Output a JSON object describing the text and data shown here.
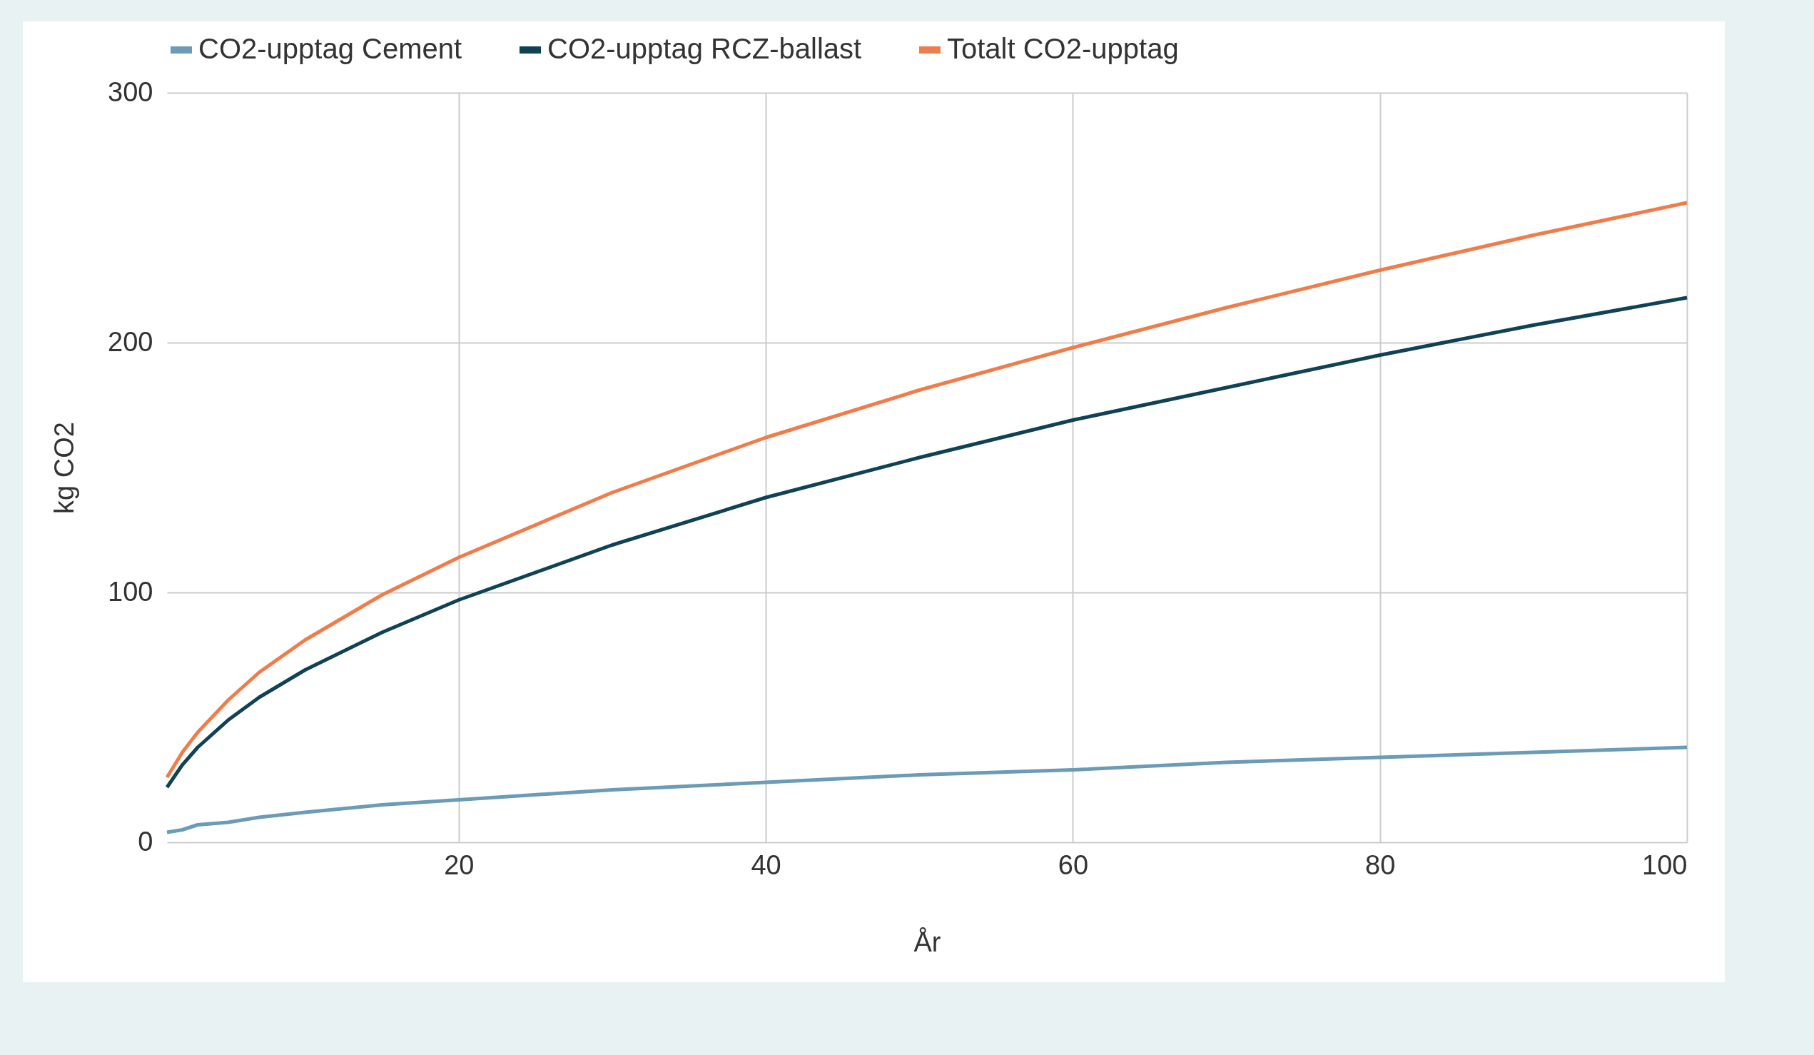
{
  "chart_data": {
    "type": "line",
    "xlabel": "År",
    "ylabel": "kg CO2",
    "x": [
      1,
      2,
      3,
      5,
      7,
      10,
      15,
      20,
      30,
      40,
      50,
      60,
      70,
      80,
      90,
      100
    ],
    "series": [
      {
        "name": "CO2-upptag Cement",
        "color": "#6b9bb6",
        "values": [
          4,
          5,
          7,
          8,
          10,
          12,
          15,
          17,
          21,
          24,
          27,
          29,
          32,
          34,
          36,
          38
        ]
      },
      {
        "name": "CO2-upptag RCZ-ballast",
        "color": "#0f4254",
        "values": [
          22,
          31,
          38,
          49,
          58,
          69,
          84,
          97,
          119,
          138,
          154,
          169,
          182,
          195,
          207,
          218
        ]
      },
      {
        "name": "Totalt CO2-upptag",
        "color": "#ef7d4b",
        "values": [
          26,
          36,
          44,
          57,
          68,
          81,
          99,
          114,
          140,
          162,
          181,
          198,
          214,
          229,
          243,
          256
        ]
      }
    ],
    "xlim": [
      1,
      100
    ],
    "xticks": [
      20,
      40,
      60,
      80,
      100
    ],
    "ylim": [
      0,
      300
    ],
    "yticks": [
      0,
      100,
      200,
      300
    ],
    "grid": true,
    "legend": "top",
    "marker": "none",
    "line_style": "solid"
  }
}
